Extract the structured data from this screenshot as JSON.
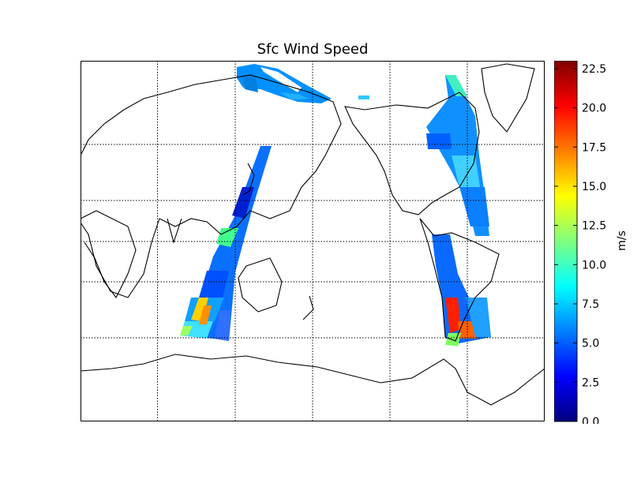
{
  "title": "Sfc Wind Speed",
  "colorbar": {
    "unit": "m/s",
    "min": 0.0,
    "max": 23.0,
    "ticks": [
      "0.0",
      "2.5",
      "5.0",
      "7.5",
      "10.0",
      "12.5",
      "15.0",
      "17.5",
      "20.0",
      "22.5"
    ],
    "tick_values": [
      0.0,
      2.5,
      5.0,
      7.5,
      10.0,
      12.5,
      15.0,
      17.5,
      20.0,
      22.5
    ],
    "colormap": [
      "#00007f",
      "#0000ff",
      "#007fff",
      "#00ffff",
      "#7fff7f",
      "#ffff00",
      "#ff7f00",
      "#ff0000",
      "#7f0000"
    ]
  },
  "map": {
    "projection": "miller",
    "background": "#ffffff",
    "coastline_color": "#000000",
    "graticule": "dotted"
  }
}
